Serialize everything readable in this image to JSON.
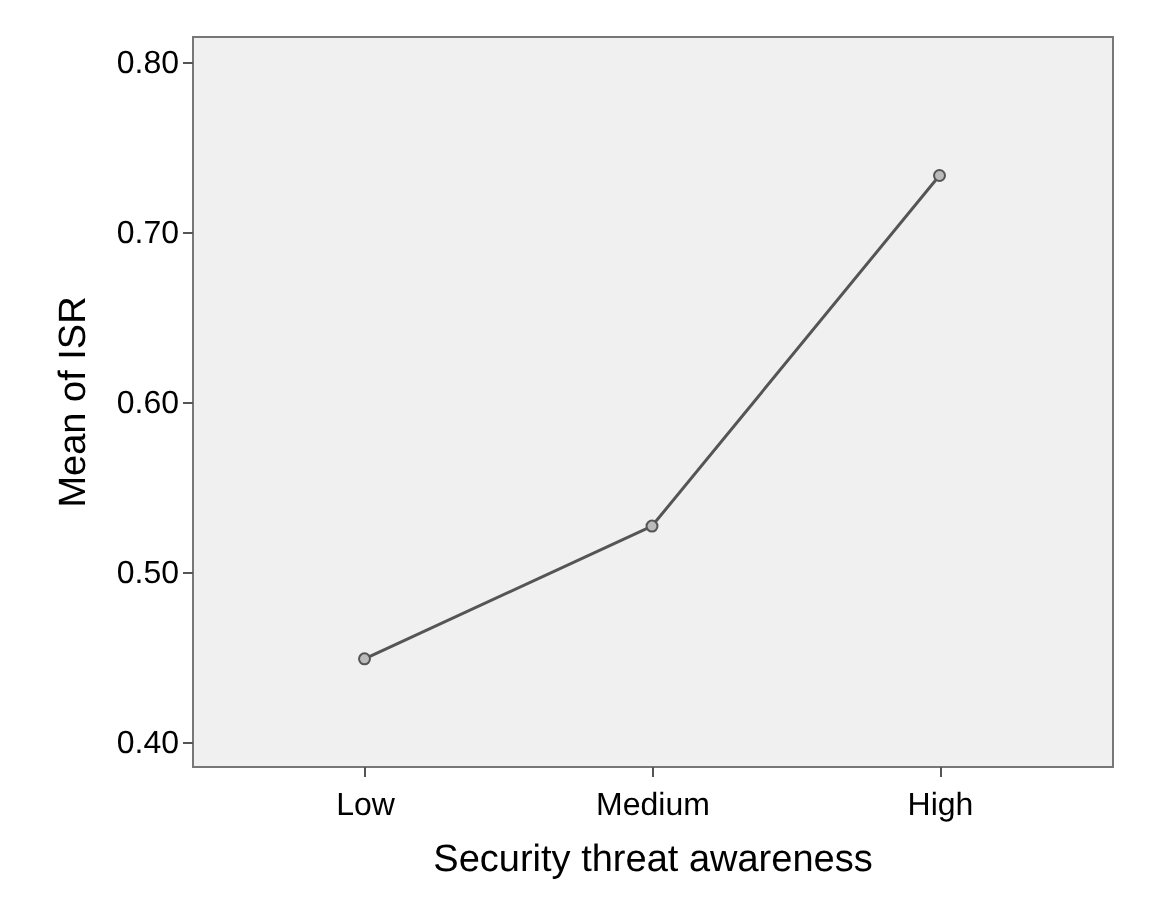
{
  "chart_data": {
    "type": "line",
    "xlabel": "Security threat awareness",
    "ylabel": "Mean of ISR",
    "categories": [
      "Low",
      "Medium",
      "High"
    ],
    "series": [
      {
        "color": "#555555",
        "values": [
          0.449,
          0.527,
          0.733
        ]
      }
    ],
    "ylim": [
      0.386,
      0.815
    ],
    "yticks": [
      {
        "value": 0.4,
        "label": "0.40"
      },
      {
        "value": 0.5,
        "label": "0.50"
      },
      {
        "value": 0.6,
        "label": "0.60"
      },
      {
        "value": 0.7,
        "label": "0.70"
      },
      {
        "value": 0.8,
        "label": "0.80"
      }
    ],
    "grid": false,
    "marker": "circle",
    "line_style": "solid"
  }
}
